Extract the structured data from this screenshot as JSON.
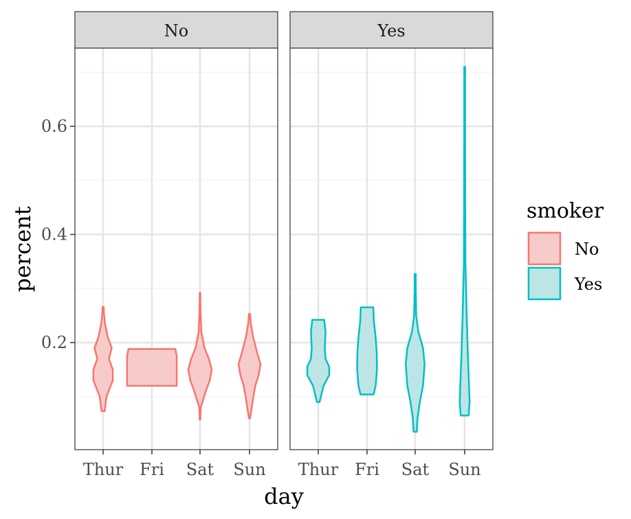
{
  "chart_data": {
    "type": "violin",
    "x_label": "day",
    "y_label": "percent",
    "categories": [
      "Thur",
      "Fri",
      "Sat",
      "Sun"
    ],
    "y_ticks": [
      0.2,
      0.4,
      0.6
    ],
    "y_tick_labels": [
      "0.2",
      "0.4",
      "0.6"
    ],
    "y_range": [
      0.0,
      0.75
    ],
    "grid": true,
    "legend": {
      "title": "smoker",
      "position": "right",
      "items": [
        {
          "label": "No",
          "fill": "#F8CBCB",
          "stroke": "#F8766D"
        },
        {
          "label": "Yes",
          "fill": "#BDE5E6",
          "stroke": "#00BFC4"
        }
      ]
    },
    "panels": [
      {
        "label": "No",
        "color": "#F8766D",
        "fill": "#F8CBCB",
        "violins": [
          {
            "category": "Thur",
            "profile": [
              [
                0.073,
                0.06
              ],
              [
                0.1,
                0.13
              ],
              [
                0.13,
                0.37
              ],
              [
                0.15,
                0.37
              ],
              [
                0.17,
                0.22
              ],
              [
                0.19,
                0.33
              ],
              [
                0.21,
                0.18
              ],
              [
                0.235,
                0.07
              ],
              [
                0.255,
                0.03
              ],
              [
                0.266,
                0.02
              ]
            ]
          },
          {
            "category": "Fri",
            "profile": [
              [
                0.12,
                0.95
              ],
              [
                0.13,
                0.95
              ],
              [
                0.16,
                0.95
              ],
              [
                0.175,
                0.95
              ],
              [
                0.188,
                0.9
              ]
            ]
          },
          {
            "category": "Sat",
            "profile": [
              [
                0.057,
                0.01
              ],
              [
                0.08,
                0.03
              ],
              [
                0.11,
                0.22
              ],
              [
                0.13,
                0.37
              ],
              [
                0.15,
                0.45
              ],
              [
                0.17,
                0.34
              ],
              [
                0.19,
                0.17
              ],
              [
                0.22,
                0.05
              ],
              [
                0.26,
                0.02
              ],
              [
                0.292,
                0.01
              ]
            ]
          },
          {
            "category": "Sun",
            "profile": [
              [
                0.06,
                0.02
              ],
              [
                0.1,
                0.15
              ],
              [
                0.12,
                0.22
              ],
              [
                0.14,
                0.35
              ],
              [
                0.16,
                0.42
              ],
              [
                0.18,
                0.3
              ],
              [
                0.21,
                0.14
              ],
              [
                0.235,
                0.05
              ],
              [
                0.253,
                0.02
              ]
            ]
          }
        ]
      },
      {
        "label": "Yes",
        "color": "#00BFC4",
        "fill": "#BDE5E6",
        "violins": [
          {
            "category": "Thur",
            "profile": [
              [
                0.09,
                0.05
              ],
              [
                0.12,
                0.2
              ],
              [
                0.14,
                0.42
              ],
              [
                0.155,
                0.42
              ],
              [
                0.17,
                0.28
              ],
              [
                0.19,
                0.25
              ],
              [
                0.22,
                0.28
              ],
              [
                0.242,
                0.23
              ]
            ]
          },
          {
            "category": "Fri",
            "profile": [
              [
                0.104,
                0.25
              ],
              [
                0.12,
                0.33
              ],
              [
                0.15,
                0.38
              ],
              [
                0.18,
                0.37
              ],
              [
                0.21,
                0.33
              ],
              [
                0.24,
                0.26
              ],
              [
                0.265,
                0.24
              ]
            ]
          },
          {
            "category": "Sat",
            "profile": [
              [
                0.035,
                0.06
              ],
              [
                0.06,
                0.09
              ],
              [
                0.09,
                0.18
              ],
              [
                0.12,
                0.3
              ],
              [
                0.16,
                0.36
              ],
              [
                0.19,
                0.3
              ],
              [
                0.22,
                0.12
              ],
              [
                0.25,
                0.04
              ],
              [
                0.3,
                0.02
              ],
              [
                0.327,
                0.02
              ]
            ]
          },
          {
            "category": "Sun",
            "profile": [
              [
                0.065,
                0.15
              ],
              [
                0.09,
                0.19
              ],
              [
                0.13,
                0.16
              ],
              [
                0.18,
                0.12
              ],
              [
                0.25,
                0.08
              ],
              [
                0.35,
                0.03
              ],
              [
                0.48,
                0.02
              ],
              [
                0.62,
                0.015
              ],
              [
                0.71,
                0.015
              ]
            ]
          }
        ]
      }
    ]
  }
}
